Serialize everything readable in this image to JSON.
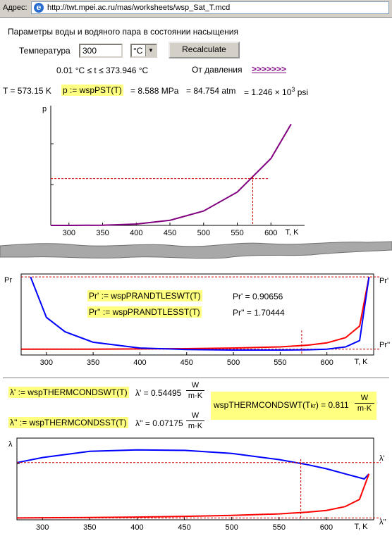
{
  "address_bar": {
    "label": "Адрес:",
    "url": "http://twt.mpei.ac.ru/mas/worksheets/wsp_Sat_T.mcd"
  },
  "header": {
    "title": "Параметры воды и водяного пара в состоянии насыщения",
    "temperature_label": "Температура",
    "temperature_value": "300",
    "unit_value": "°C",
    "recalculate_label": "Recalculate",
    "range_text": "0.01 °C ≤ t ≤ 373.946 °C",
    "from_pressure_label": "От давления",
    "from_pressure_link": ">>>>>>>"
  },
  "pressure_line": {
    "t_text": "T = 573.15 K",
    "formula": "p := wspPST(T)",
    "mpa": "= 8.588 MPa",
    "atm": "= 84.754 atm",
    "psi_prefix": "= 1.246 × 10",
    "psi_exp": "3",
    "psi_unit": " psi"
  },
  "prandtl": {
    "formula1": "Pr' := wspPRANDTLESWT(T)",
    "value1": "Pr' = 0.90656",
    "formula2": "Pr'' := wspPRANDTLESST(T)",
    "value2": "Pr'' = 1.70444"
  },
  "conductivity": {
    "formula1": "λ' := wspTHERMCONDSWT(T)",
    "value1": "λ' = 0.54495",
    "formula2": "λ'' := wspTHERMCONDSST(T)",
    "value2": "λ'' = 0.07175",
    "unit_num": "W",
    "unit_den": "m·K",
    "kr_prefix": "wspTHERMCONDSWT(T",
    "kr_sub": "kr",
    "kr_suffix": ") = 0.811"
  },
  "chart_data": [
    {
      "type": "line",
      "ylabel": "p",
      "xlabel": "T, K",
      "xticks": [
        300,
        350,
        400,
        450,
        500,
        550,
        600
      ],
      "xlim": [
        273,
        650
      ],
      "ylim": [
        0,
        22
      ],
      "marker": {
        "x": 573,
        "y": 8.59
      },
      "series": [
        {
          "color": "#800080",
          "x": [
            273,
            300,
            350,
            400,
            450,
            500,
            550,
            600,
            630
          ],
          "y": [
            0.006,
            0.004,
            0.04,
            0.25,
            0.93,
            2.64,
            6.12,
            12.3,
            18.6
          ]
        }
      ]
    },
    {
      "type": "line",
      "ylabel": "Pr",
      "xlabel": "T, K",
      "xticks": [
        300,
        350,
        400,
        450,
        500,
        550,
        600
      ],
      "xlim": [
        273,
        650
      ],
      "ylim": [
        0,
        14
      ],
      "marker_x": 573,
      "series": [
        {
          "name": "Pr''",
          "color": "#ff0000",
          "x": [
            273,
            300,
            350,
            400,
            450,
            500,
            550,
            580,
            600,
            620,
            635,
            645
          ],
          "y": [
            1.0,
            1.0,
            1.01,
            1.05,
            1.1,
            1.2,
            1.4,
            1.7,
            2.1,
            3.0,
            5.0,
            13.5
          ]
        },
        {
          "name": "Pr'",
          "color": "#0000ff",
          "x": [
            283,
            300,
            320,
            350,
            400,
            450,
            500,
            550,
            580,
            600,
            620,
            635,
            645
          ],
          "y": [
            13.5,
            6.5,
            4.0,
            2.2,
            1.2,
            0.95,
            0.85,
            0.85,
            0.9,
            1.0,
            1.4,
            2.5,
            13.5
          ]
        }
      ]
    },
    {
      "type": "line",
      "ylabel": "λ",
      "xlabel": "T, K",
      "xticks": [
        300,
        350,
        400,
        450,
        500,
        550,
        600
      ],
      "xlim": [
        273,
        650
      ],
      "ylim": [
        0,
        0.8
      ],
      "marker_x": 573,
      "series": [
        {
          "name": "λ'",
          "color": "#0000ff",
          "x": [
            273,
            300,
            350,
            400,
            450,
            500,
            550,
            580,
            600,
            620,
            640,
            645
          ],
          "y": [
            0.56,
            0.61,
            0.67,
            0.685,
            0.68,
            0.65,
            0.59,
            0.54,
            0.5,
            0.45,
            0.4,
            0.45
          ]
        },
        {
          "name": "λ''",
          "color": "#ff0000",
          "x": [
            273,
            300,
            350,
            400,
            450,
            500,
            550,
            580,
            600,
            620,
            635,
            645
          ],
          "y": [
            0.018,
            0.02,
            0.023,
            0.027,
            0.034,
            0.043,
            0.058,
            0.075,
            0.092,
            0.13,
            0.2,
            0.45
          ]
        }
      ]
    }
  ]
}
